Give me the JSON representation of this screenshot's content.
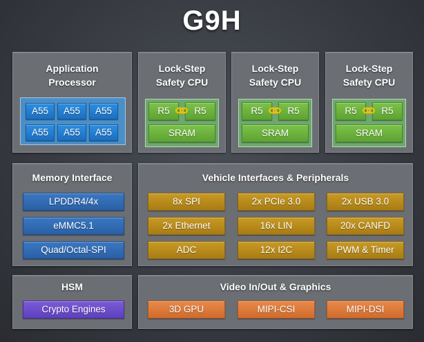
{
  "title": "G9H",
  "ap": {
    "title_line1": "Application",
    "title_line2": "Processor",
    "cores": [
      "A55",
      "A55",
      "A55",
      "A55",
      "A55",
      "A55"
    ]
  },
  "lockstep": [
    {
      "title_line1": "Lock-Step",
      "title_line2": "Safety CPU",
      "core_a": "R5",
      "core_b": "R5",
      "sram": "SRAM"
    },
    {
      "title_line1": "Lock-Step",
      "title_line2": "Safety CPU",
      "core_a": "R5",
      "core_b": "R5",
      "sram": "SRAM"
    },
    {
      "title_line1": "Lock-Step",
      "title_line2": "Safety CPU",
      "core_a": "R5",
      "core_b": "R5",
      "sram": "SRAM"
    }
  ],
  "memory": {
    "title": "Memory Interface",
    "items": [
      "LPDDR4/4x",
      "eMMC5.1",
      "Quad/Octal-SPI"
    ]
  },
  "vehicle": {
    "title": "Vehicle Interfaces & Peripherals",
    "items": [
      "8x SPI",
      "2x PCIe 3.0",
      "2x USB 3.0",
      "2x Ethernet",
      "16x LIN",
      "20x CANFD",
      "ADC",
      "12x I2C",
      "PWM & Timer"
    ]
  },
  "hsm": {
    "title": "HSM",
    "items": [
      "Crypto Engines"
    ]
  },
  "video": {
    "title": "Video In/Out & Graphics",
    "items": [
      "3D GPU",
      "MIPI-CSI",
      "MIPI-DSI"
    ]
  },
  "colors": {
    "core_blue": "#1c84d8",
    "memory_blue": "#2f6bb5",
    "r5_green": "#6db23d",
    "periph_gold": "#b8891a",
    "video_orange": "#dc7838",
    "hsm_purple": "#6a4bcb",
    "panel_gray": "#6b6e73",
    "link_yellow": "#f2c200"
  },
  "icons": {
    "lockstep_link": "chain-link-icon"
  }
}
